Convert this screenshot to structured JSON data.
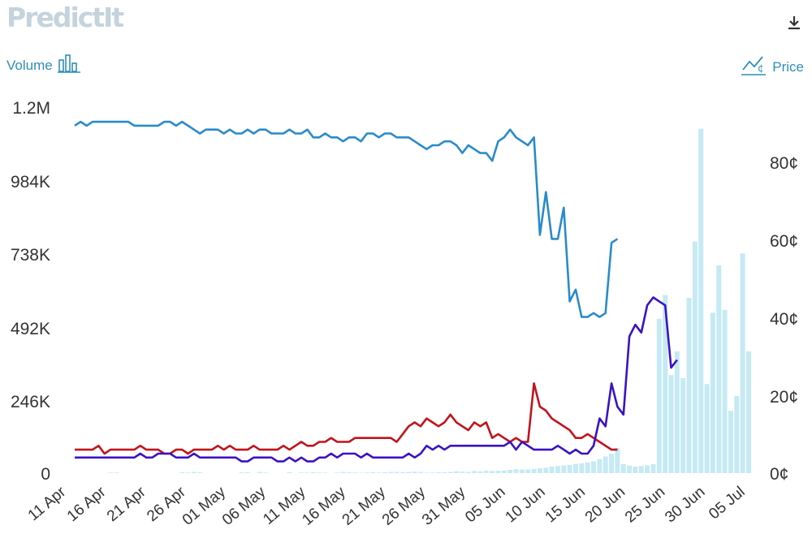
{
  "header": {
    "logo_text": "PredictIt",
    "download_icon": "download-icon",
    "volume_label": "Volume",
    "volume_icon": "bar-chart-icon",
    "price_label": "Price",
    "price_icon": "price-line-icon",
    "accent_color": "#2f8db8"
  },
  "chart_data": {
    "type": "line",
    "x_labels": [
      "11 Apr",
      "16 Apr",
      "21 Apr",
      "26 Apr",
      "01 May",
      "06 May",
      "11 May",
      "16 May",
      "21 May",
      "26 May",
      "31 May",
      "05 Jun",
      "10 Jun",
      "15 Jun",
      "20 Jun",
      "25 Jun",
      "30 Jun",
      "05 Jul"
    ],
    "volume_axis": {
      "ticks": [
        "0",
        "246K",
        "492K",
        "738K",
        "984K",
        "1.2M"
      ],
      "max": 1230000
    },
    "price_axis": {
      "ticks": [
        "0¢",
        "20¢",
        "40¢",
        "60¢",
        "80¢"
      ],
      "max": 100
    },
    "volume_color": "#c5eaf4",
    "volume": [
      0,
      0,
      0,
      0,
      0,
      0,
      2000,
      2000,
      0,
      0,
      0,
      0,
      0,
      0,
      0,
      0,
      0,
      0,
      3000,
      2000,
      4000,
      3000,
      0,
      0,
      0,
      0,
      0,
      0,
      3000,
      3000,
      0,
      4000,
      2000,
      0,
      0,
      0,
      3000,
      0,
      2000,
      2000,
      3000,
      2000,
      2000,
      0,
      2000,
      4000,
      3000,
      2000,
      1000,
      2000,
      3000,
      2000,
      3000,
      4000,
      4000,
      3000,
      4000,
      5000,
      4000,
      2000,
      2000,
      3000,
      3000,
      4000,
      6000,
      5000,
      4000,
      7000,
      6000,
      8000,
      7000,
      8000,
      9000,
      11000,
      13000,
      12000,
      12000,
      14000,
      16000,
      18000,
      22000,
      24000,
      26000,
      28000,
      31000,
      33000,
      36000,
      40000,
      47000,
      56000,
      65000,
      85000,
      30000,
      25000,
      22000,
      24000,
      26000,
      30000,
      520000,
      600000,
      330000,
      410000,
      320000,
      590000,
      780000,
      1160000,
      300000,
      540000,
      700000,
      550000,
      210000,
      260000,
      740000,
      410000
    ],
    "series": [
      {
        "name": "",
        "color": "#2a8bc9",
        "values": [
          89,
          90,
          89,
          90,
          90,
          90,
          90,
          90,
          90,
          90,
          89,
          89,
          89,
          89,
          89,
          90,
          90,
          89,
          90,
          89,
          88,
          87,
          88,
          88,
          88,
          87,
          88,
          87,
          87,
          88,
          87,
          88,
          88,
          87,
          87,
          87,
          88,
          87,
          87,
          88,
          86,
          86,
          87,
          86,
          86,
          85,
          86,
          86,
          85,
          87,
          87,
          86,
          87,
          87,
          86,
          86,
          86,
          85,
          84,
          83,
          84,
          84,
          85,
          85,
          84,
          82,
          84,
          83,
          82,
          82,
          80,
          85,
          86,
          88,
          86,
          85,
          84,
          86,
          61,
          72,
          60,
          60,
          68,
          44,
          47,
          40,
          40,
          41,
          40,
          41,
          59,
          60
        ]
      },
      {
        "name": "",
        "color": "#c0141b",
        "values": [
          6,
          6,
          6,
          6,
          7,
          5,
          6,
          6,
          6,
          6,
          6,
          7,
          6,
          6,
          6,
          5,
          5,
          6,
          6,
          5,
          6,
          6,
          6,
          6,
          7,
          6,
          7,
          6,
          6,
          6,
          7,
          6,
          6,
          6,
          6,
          7,
          6,
          7,
          8,
          7,
          7,
          8,
          8,
          9,
          8,
          8,
          8,
          9,
          9,
          9,
          9,
          9,
          9,
          9,
          8,
          10,
          12,
          13,
          12,
          14,
          13,
          12,
          13,
          15,
          13,
          12,
          11,
          13,
          12,
          13,
          9,
          10,
          9,
          8,
          9,
          8,
          8,
          23,
          17,
          16,
          14,
          13,
          12,
          11,
          9,
          9,
          10,
          9,
          8,
          7,
          6,
          6
        ]
      },
      {
        "name": "",
        "color": "#3a13c4",
        "values": [
          4,
          4,
          4,
          4,
          4,
          4,
          4,
          4,
          4,
          4,
          4,
          5,
          4,
          4,
          5,
          5,
          5,
          4,
          4,
          4,
          5,
          4,
          4,
          4,
          4,
          4,
          4,
          4,
          3,
          3,
          4,
          4,
          4,
          4,
          3,
          3,
          4,
          3,
          4,
          3,
          3,
          4,
          4,
          5,
          4,
          5,
          5,
          5,
          4,
          5,
          4,
          4,
          4,
          4,
          4,
          4,
          5,
          4,
          5,
          7,
          6,
          7,
          6,
          7,
          7,
          7,
          7,
          7,
          7,
          7,
          7,
          7,
          7,
          8,
          6,
          8,
          7,
          6,
          6,
          6,
          6,
          7,
          6,
          5,
          6,
          5,
          5,
          7,
          14,
          12,
          23,
          17,
          15,
          35,
          38,
          36,
          43,
          45,
          44,
          43,
          27,
          29
        ]
      }
    ]
  }
}
